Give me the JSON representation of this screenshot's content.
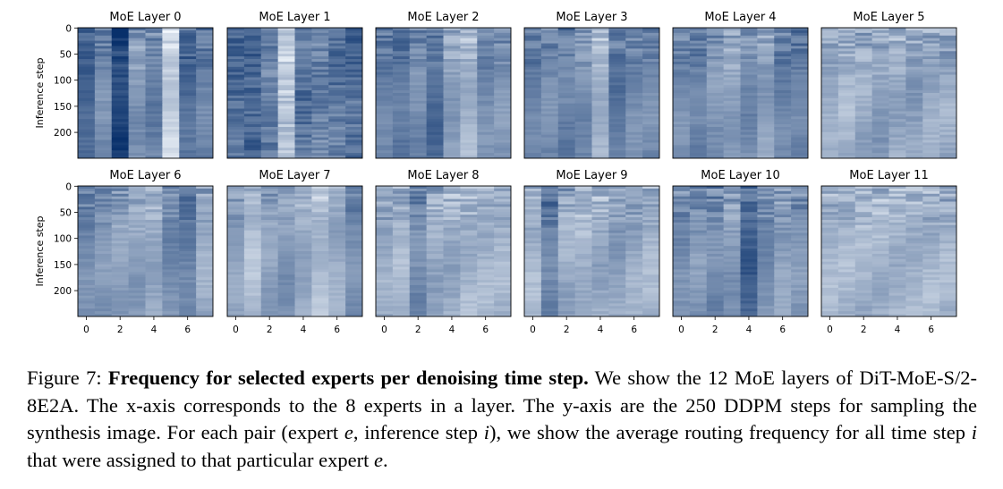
{
  "chart_data": {
    "type": "heatmap",
    "layout": "2x6 grid",
    "colormap": "Blues",
    "colors": {
      "low": "#f7fbff",
      "high": "#08306b",
      "frame": "#000000",
      "text": "#000000"
    },
    "xlabel": "",
    "ylabel": "Inference step",
    "x_ticks": [
      "0",
      "2",
      "4",
      "6"
    ],
    "y_ticks": [
      "0",
      "50",
      "100",
      "150",
      "200"
    ],
    "xlim": [
      -0.5,
      7.5
    ],
    "ylim": [
      249.5,
      -0.5
    ],
    "grid": false,
    "experts": 8,
    "steps": 250,
    "panels": [
      {
        "title": "MoE Layer 0",
        "expert_profile": [
          0.75,
          0.55,
          0.9,
          0.5,
          0.6,
          0.2,
          0.7,
          0.6
        ],
        "row_variation": 0.35,
        "banding": "top"
      },
      {
        "title": "MoE Layer 1",
        "expert_profile": [
          0.7,
          0.75,
          0.6,
          0.25,
          0.65,
          0.6,
          0.65,
          0.7
        ],
        "row_variation": 0.25,
        "banding": "uniform"
      },
      {
        "title": "MoE Layer 2",
        "expert_profile": [
          0.6,
          0.65,
          0.55,
          0.7,
          0.45,
          0.35,
          0.55,
          0.5
        ],
        "row_variation": 0.3,
        "banding": "top"
      },
      {
        "title": "MoE Layer 3",
        "expert_profile": [
          0.6,
          0.55,
          0.6,
          0.55,
          0.35,
          0.65,
          0.55,
          0.55
        ],
        "row_variation": 0.3,
        "banding": "top"
      },
      {
        "title": "MoE Layer 4",
        "expert_profile": [
          0.55,
          0.6,
          0.5,
          0.45,
          0.55,
          0.45,
          0.6,
          0.6
        ],
        "row_variation": 0.3,
        "banding": "top"
      },
      {
        "title": "MoE Layer 5",
        "expert_profile": [
          0.4,
          0.35,
          0.4,
          0.45,
          0.4,
          0.45,
          0.4,
          0.4
        ],
        "row_variation": 0.35,
        "banding": "top"
      },
      {
        "title": "MoE Layer 6",
        "expert_profile": [
          0.55,
          0.5,
          0.45,
          0.45,
          0.4,
          0.55,
          0.6,
          0.4
        ],
        "row_variation": 0.3,
        "banding": "top"
      },
      {
        "title": "MoE Layer 7",
        "expert_profile": [
          0.45,
          0.3,
          0.45,
          0.5,
          0.4,
          0.3,
          0.4,
          0.55
        ],
        "row_variation": 0.25,
        "banding": "top"
      },
      {
        "title": "MoE Layer 8",
        "expert_profile": [
          0.4,
          0.35,
          0.55,
          0.4,
          0.4,
          0.35,
          0.35,
          0.35
        ],
        "row_variation": 0.35,
        "banding": "top"
      },
      {
        "title": "MoE Layer 9",
        "expert_profile": [
          0.35,
          0.6,
          0.4,
          0.35,
          0.4,
          0.45,
          0.4,
          0.35
        ],
        "row_variation": 0.35,
        "banding": "top"
      },
      {
        "title": "MoE Layer 10",
        "expert_profile": [
          0.55,
          0.5,
          0.55,
          0.5,
          0.75,
          0.55,
          0.45,
          0.5
        ],
        "row_variation": 0.35,
        "banding": "top"
      },
      {
        "title": "MoE Layer 11",
        "expert_profile": [
          0.35,
          0.35,
          0.35,
          0.35,
          0.35,
          0.35,
          0.35,
          0.35
        ],
        "row_variation": 0.35,
        "banding": "top"
      }
    ]
  },
  "caption": {
    "label": "Figure 7:",
    "bold": "Frequency for selected experts per denoising time step.",
    "text_1": " We show the 12 MoE layers of DiT-MoE-S/2-8E2A. The x-axis corresponds to the 8 experts in a layer. The y-axis are the 250 DDPM steps for sampling the synthesis image. For each pair (expert ",
    "var_e": "e",
    "text_2": ", inference step ",
    "var_i": "i",
    "text_3": "), we show the average routing frequency for all time step ",
    "var_i2": "i",
    "text_4": " that were assigned to that particular expert ",
    "var_e2": "e",
    "text_5": "."
  }
}
